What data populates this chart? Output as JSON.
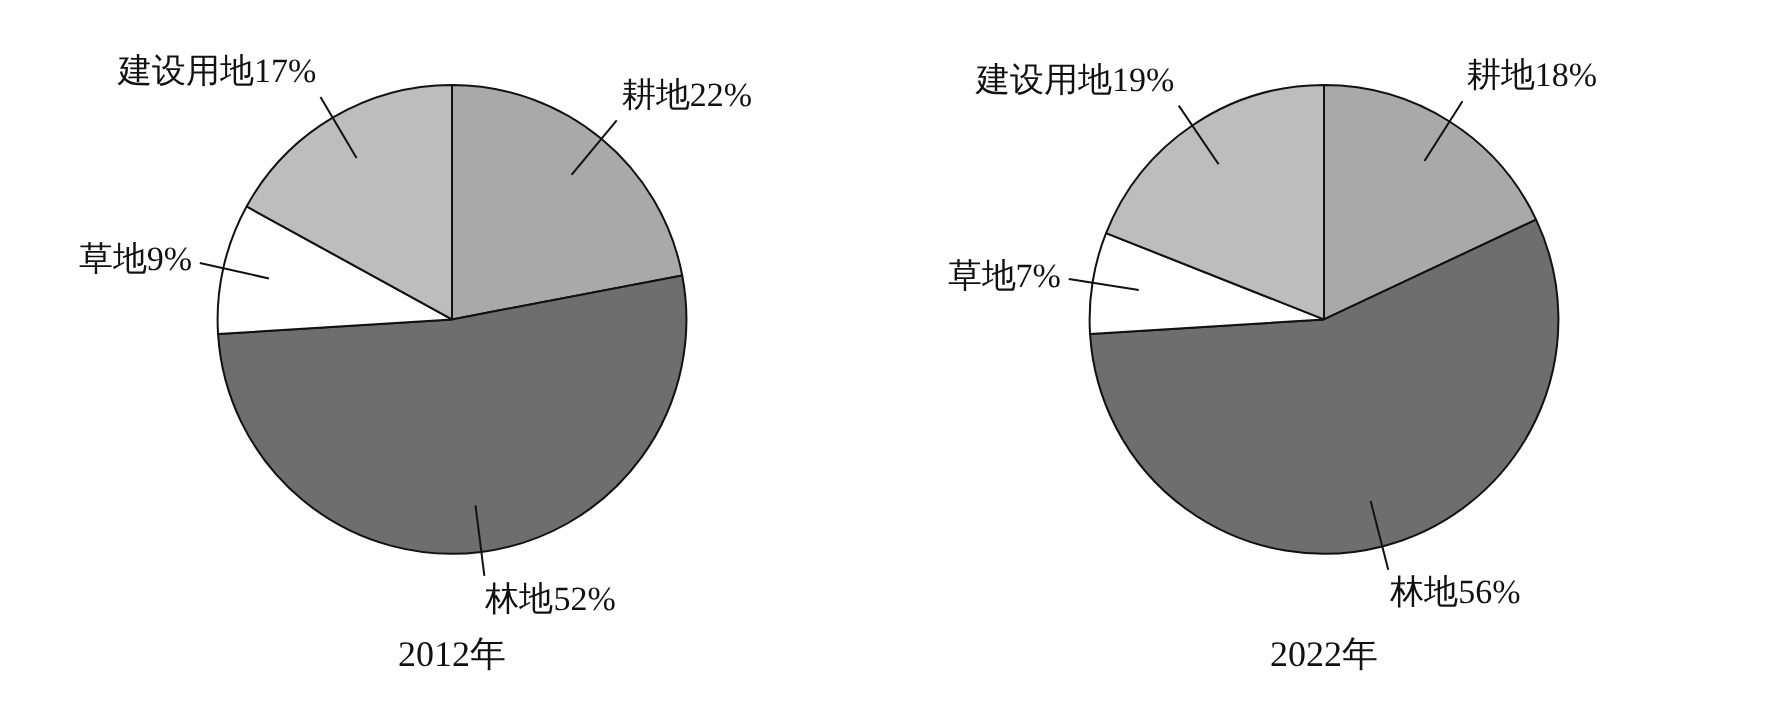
{
  "chart_data": [
    {
      "type": "pie",
      "title": "2012年",
      "categories": [
        "耕地",
        "林地",
        "草地",
        "建设用地"
      ],
      "values": [
        22,
        52,
        9,
        17
      ],
      "colors": [
        "#a9a9a9",
        "#6e6e6e",
        "#ffffff",
        "#bdbdbd"
      ],
      "value_labels": [
        "22%",
        "52%",
        "9%",
        "17%"
      ]
    },
    {
      "type": "pie",
      "title": "2022年",
      "categories": [
        "耕地",
        "林地",
        "草地",
        "建设用地"
      ],
      "values": [
        18,
        56,
        7,
        19
      ],
      "colors": [
        "#a9a9a9",
        "#6e6e6e",
        "#ffffff",
        "#bdbdbd"
      ],
      "value_labels": [
        "18%",
        "56%",
        "7%",
        "19%"
      ]
    }
  ]
}
